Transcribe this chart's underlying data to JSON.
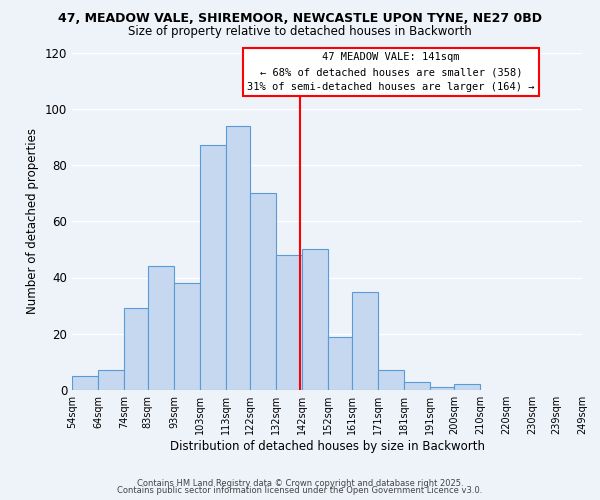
{
  "title_line1": "47, MEADOW VALE, SHIREMOOR, NEWCASTLE UPON TYNE, NE27 0BD",
  "title_line2": "Size of property relative to detached houses in Backworth",
  "xlabel": "Distribution of detached houses by size in Backworth",
  "ylabel": "Number of detached properties",
  "bar_heights": [
    5,
    7,
    29,
    44,
    38,
    87,
    94,
    70,
    48,
    50,
    19,
    35,
    7,
    3,
    1,
    2
  ],
  "bin_edges": [
    54,
    64,
    74,
    83,
    93,
    103,
    113,
    122,
    132,
    142,
    152,
    161,
    171,
    181,
    191,
    200,
    210,
    220,
    230,
    239,
    249
  ],
  "tick_labels": [
    "54sqm",
    "64sqm",
    "74sqm",
    "83sqm",
    "93sqm",
    "103sqm",
    "113sqm",
    "122sqm",
    "132sqm",
    "142sqm",
    "152sqm",
    "161sqm",
    "171sqm",
    "181sqm",
    "191sqm",
    "200sqm",
    "210sqm",
    "220sqm",
    "230sqm",
    "239sqm",
    "249sqm"
  ],
  "bar_color": "#c5d8f0",
  "bar_edge_color": "#5b9bd5",
  "red_line_x": 141,
  "ylim": [
    0,
    120
  ],
  "yticks": [
    0,
    20,
    40,
    60,
    80,
    100,
    120
  ],
  "annotation_title": "47 MEADOW VALE: 141sqm",
  "annotation_line2": "← 68% of detached houses are smaller (358)",
  "annotation_line3": "31% of semi-detached houses are larger (164) →",
  "footer_line1": "Contains HM Land Registry data © Crown copyright and database right 2025.",
  "footer_line2": "Contains public sector information licensed under the Open Government Licence v3.0.",
  "background_color": "#eef2f9",
  "grid_color": "#ffffff"
}
